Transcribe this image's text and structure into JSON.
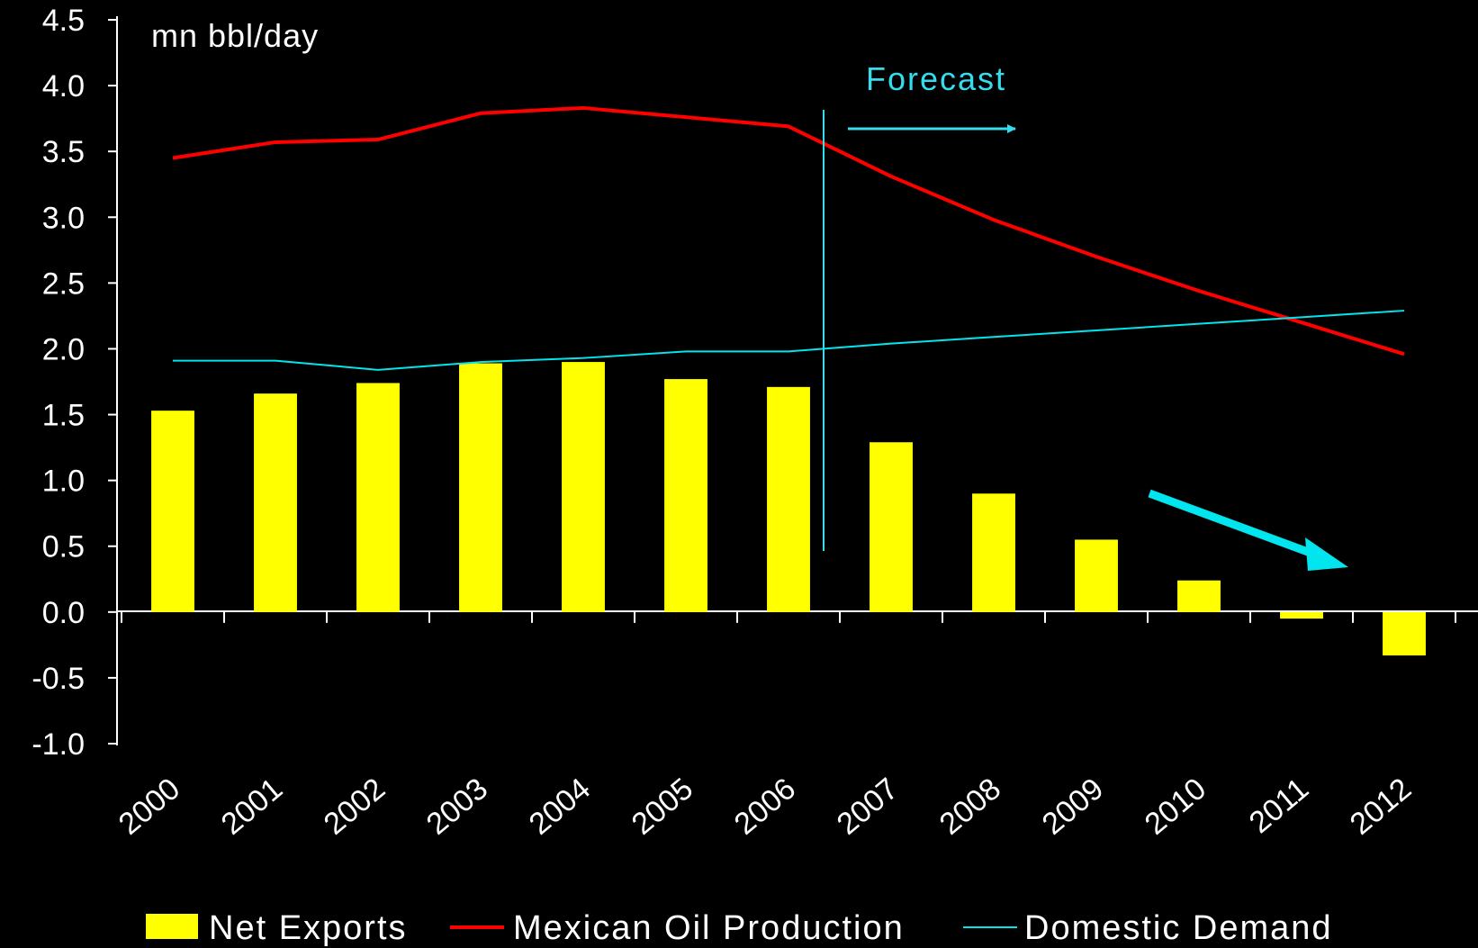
{
  "chart_data": {
    "type": "bar",
    "unit_label": "mn bbl/day",
    "categories": [
      "2000",
      "2001",
      "2002",
      "2003",
      "2004",
      "2005",
      "2006",
      "2007",
      "2008",
      "2009",
      "2010",
      "2011",
      "2012"
    ],
    "ylim": [
      -1.0,
      4.5
    ],
    "yticks": [
      "4.5",
      "4.0",
      "3.5",
      "3.0",
      "2.5",
      "2.0",
      "1.5",
      "1.0",
      "0.5",
      "0.0",
      "-0.5",
      "-1.0"
    ],
    "ytick_values": [
      4.5,
      4.0,
      3.5,
      3.0,
      2.5,
      2.0,
      1.5,
      1.0,
      0.5,
      0.0,
      -0.5,
      -1.0
    ],
    "grid": false,
    "legend_position": "bottom",
    "series": [
      {
        "name": "Net Exports",
        "kind": "bar",
        "color": "#ffff00",
        "values": [
          1.53,
          1.66,
          1.74,
          1.89,
          1.9,
          1.77,
          1.71,
          1.29,
          0.9,
          0.55,
          0.24,
          -0.05,
          -0.33
        ]
      },
      {
        "name": "Mexican Oil Production",
        "kind": "line",
        "color": "#ff0000",
        "values": [
          3.45,
          3.57,
          3.59,
          3.79,
          3.83,
          3.76,
          3.69,
          3.31,
          2.98,
          2.7,
          2.44,
          2.2,
          1.96
        ]
      },
      {
        "name": "Domestic Demand",
        "kind": "line",
        "color": "#00e5ee",
        "values": [
          1.91,
          1.91,
          1.84,
          1.9,
          1.93,
          1.98,
          1.98,
          2.04,
          2.09,
          2.14,
          2.19,
          2.24,
          2.29
        ]
      }
    ],
    "annotations": {
      "forecast_label": "Forecast",
      "forecast_color": "#33ddee",
      "trend_arrow_color": "#00e5ee"
    }
  }
}
